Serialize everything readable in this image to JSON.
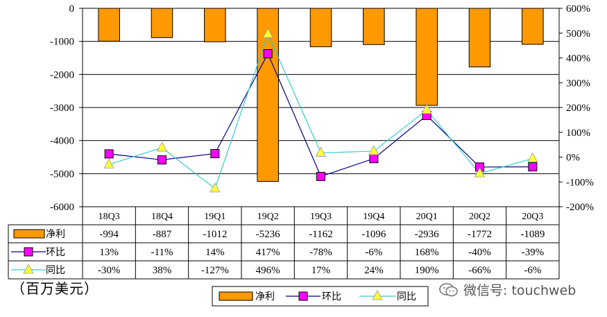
{
  "chart_data": {
    "type": "bar",
    "categories": [
      "18Q3",
      "18Q4",
      "19Q1",
      "19Q2",
      "19Q3",
      "19Q4",
      "20Q1",
      "20Q2",
      "20Q3"
    ],
    "series": [
      {
        "name": "净利",
        "type": "bar",
        "color": "#FF9900",
        "values": [
          -994,
          -887,
          -1012,
          -5236,
          -1162,
          -1096,
          -2936,
          -1772,
          -1089
        ],
        "labels": [
          "-994",
          "-887",
          "-1012",
          "-5236",
          "-1162",
          "-1096",
          "-2936",
          "-1772",
          "-1089"
        ]
      },
      {
        "name": "环比",
        "type": "line",
        "axis": "right",
        "color": "#FF00FF",
        "line_color": "#000080",
        "marker": "square",
        "values": [
          13,
          -11,
          14,
          417,
          -78,
          -6,
          168,
          -40,
          -39
        ],
        "labels": [
          "13%",
          "-11%",
          "14%",
          "417%",
          "-78%",
          "-6%",
          "168%",
          "-40%",
          "-39%"
        ]
      },
      {
        "name": "同比",
        "type": "line",
        "axis": "right",
        "color": "#FFFF33",
        "line_color": "#33CCCC",
        "marker": "triangle",
        "values": [
          -30,
          38,
          -127,
          496,
          17,
          24,
          190,
          -66,
          -6
        ],
        "labels": [
          "-30%",
          "38%",
          "-127%",
          "496%",
          "17%",
          "24%",
          "190%",
          "-66%",
          "-6%"
        ]
      }
    ],
    "ylim": [
      -6000,
      0
    ],
    "y_ticks": [
      0,
      -1000,
      -2000,
      -3000,
      -4000,
      -5000,
      -6000
    ],
    "y_tick_labels": [
      "0",
      "-1000",
      "-2000",
      "-3000",
      "-4000",
      "-5000",
      "-6000"
    ],
    "y2lim": [
      -200,
      600
    ],
    "y2_ticks": [
      600,
      500,
      400,
      300,
      200,
      100,
      0,
      -100,
      -200
    ],
    "y2_tick_labels": [
      "600%",
      "500%",
      "400%",
      "300%",
      "200%",
      "100%",
      "0%",
      "-100%",
      "-200%"
    ],
    "grid": true,
    "legend": "bottom",
    "data_table": true
  },
  "unit_label": "（百万美元）",
  "watermark": "微信号: touchweb"
}
